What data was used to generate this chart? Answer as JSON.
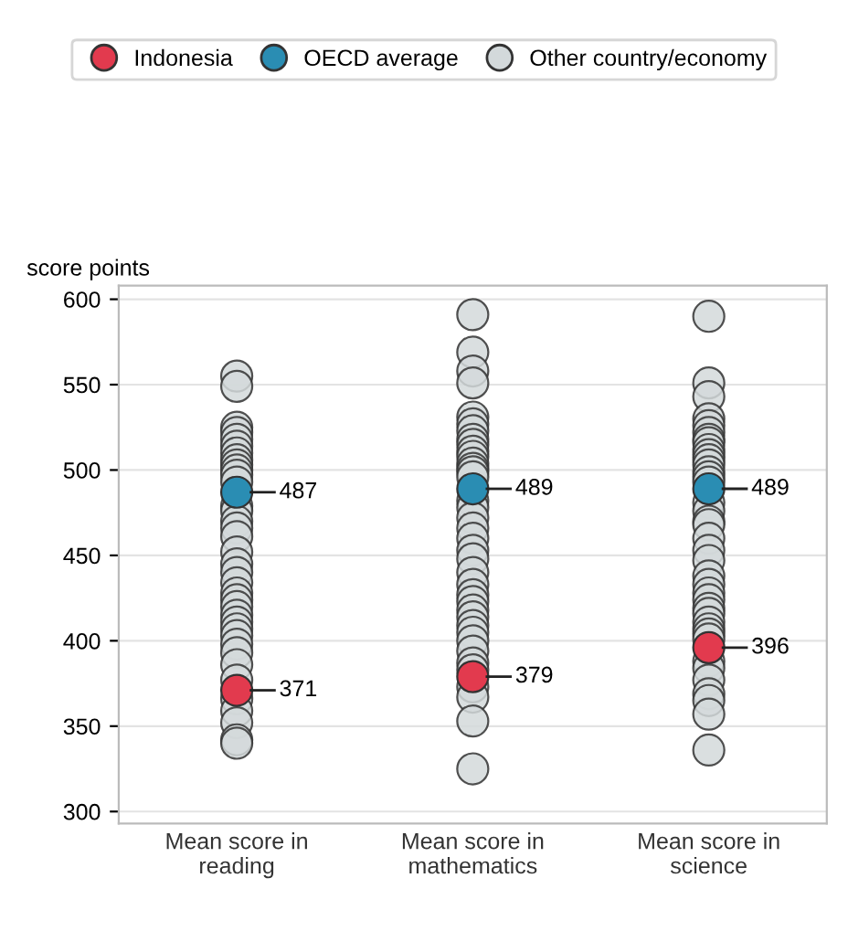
{
  "chart_data": {
    "type": "scatter",
    "ylabel": "score points",
    "categories": [
      "Mean score in\nreading",
      "Mean score in\nmathematics",
      "Mean score in\nscience"
    ],
    "ylim": [
      293,
      608
    ],
    "yticks": [
      300,
      350,
      400,
      450,
      500,
      550,
      600
    ],
    "grid": "y",
    "legend": "top",
    "marker": "circle",
    "series": [
      {
        "name": "Other country/economy",
        "color": "#d3d9db",
        "x": [
          "Mean score in\nreading",
          "Mean score in\nreading",
          "Mean score in\nreading",
          "Mean score in\nreading",
          "Mean score in\nreading",
          "Mean score in\nreading",
          "Mean score in\nreading",
          "Mean score in\nreading",
          "Mean score in\nreading",
          "Mean score in\nreading",
          "Mean score in\nreading",
          "Mean score in\nreading",
          "Mean score in\nreading",
          "Mean score in\nreading",
          "Mean score in\nreading",
          "Mean score in\nreading",
          "Mean score in\nreading",
          "Mean score in\nreading",
          "Mean score in\nreading",
          "Mean score in\nreading",
          "Mean score in\nreading",
          "Mean score in\nreading",
          "Mean score in\nreading",
          "Mean score in\nreading",
          "Mean score in\nreading",
          "Mean score in\nreading",
          "Mean score in\nreading",
          "Mean score in\nreading",
          "Mean score in\nreading",
          "Mean score in\nreading",
          "Mean score in\nreading",
          "Mean score in\nreading",
          "Mean score in\nreading",
          "Mean score in\nreading",
          "Mean score in\nreading",
          "Mean score in\nreading",
          "Mean score in\nreading",
          "Mean score in\nreading",
          "Mean score in\nmathematics",
          "Mean score in\nmathematics",
          "Mean score in\nmathematics",
          "Mean score in\nmathematics",
          "Mean score in\nmathematics",
          "Mean score in\nmathematics",
          "Mean score in\nmathematics",
          "Mean score in\nmathematics",
          "Mean score in\nmathematics",
          "Mean score in\nmathematics",
          "Mean score in\nmathematics",
          "Mean score in\nmathematics",
          "Mean score in\nmathematics",
          "Mean score in\nmathematics",
          "Mean score in\nmathematics",
          "Mean score in\nmathematics",
          "Mean score in\nmathematics",
          "Mean score in\nmathematics",
          "Mean score in\nmathematics",
          "Mean score in\nmathematics",
          "Mean score in\nmathematics",
          "Mean score in\nmathematics",
          "Mean score in\nmathematics",
          "Mean score in\nmathematics",
          "Mean score in\nmathematics",
          "Mean score in\nmathematics",
          "Mean score in\nmathematics",
          "Mean score in\nmathematics",
          "Mean score in\nmathematics",
          "Mean score in\nmathematics",
          "Mean score in\nmathematics",
          "Mean score in\nmathematics",
          "Mean score in\nmathematics",
          "Mean score in\nmathematics",
          "Mean score in\nmathematics",
          "Mean score in\nmathematics",
          "Mean score in\nmathematics",
          "Mean score in\nmathematics",
          "Mean score in\nmathematics",
          "Mean score in\nscience",
          "Mean score in\nscience",
          "Mean score in\nscience",
          "Mean score in\nscience",
          "Mean score in\nscience",
          "Mean score in\nscience",
          "Mean score in\nscience",
          "Mean score in\nscience",
          "Mean score in\nscience",
          "Mean score in\nscience",
          "Mean score in\nscience",
          "Mean score in\nscience",
          "Mean score in\nscience",
          "Mean score in\nscience",
          "Mean score in\nscience",
          "Mean score in\nscience",
          "Mean score in\nscience",
          "Mean score in\nscience",
          "Mean score in\nscience",
          "Mean score in\nscience",
          "Mean score in\nscience",
          "Mean score in\nscience",
          "Mean score in\nscience",
          "Mean score in\nscience",
          "Mean score in\nscience",
          "Mean score in\nscience",
          "Mean score in\nscience",
          "Mean score in\nscience",
          "Mean score in\nscience",
          "Mean score in\nscience",
          "Mean score in\nscience",
          "Mean score in\nscience",
          "Mean score in\nscience",
          "Mean score in\nscience",
          "Mean score in\nscience",
          "Mean score in\nscience",
          "Mean score in\nscience",
          "Mean score in\nscience",
          "Mean score in\nscience"
        ],
        "values": [
          555,
          549,
          525,
          522,
          518,
          514,
          510,
          506,
          503,
          500,
          497,
          493,
          null,
          479,
          476,
          470,
          466,
          461,
          452,
          445,
          440,
          434,
          428,
          424,
          420,
          415,
          411,
          407,
          403,
          398,
          393,
          386,
          377,
          366,
          359,
          352,
          342,
          340,
          591,
          569,
          558,
          551,
          531,
          527,
          523,
          518,
          515,
          511,
          508,
          504,
          501,
          499,
          496,
          null,
          482,
          478,
          472,
          466,
          460,
          453,
          448,
          440,
          433,
          427,
          423,
          418,
          414,
          409,
          405,
          400,
          394,
          387,
          383,
          373,
          367,
          353,
          325,
          590,
          551,
          543,
          530,
          526,
          522,
          518,
          516,
          512,
          509,
          506,
          503,
          499,
          496,
          493,
          481,
          476,
          470,
          468,
          460,
          453,
          447,
          438,
          433,
          428,
          424,
          419,
          416,
          411,
          407,
          404,
          401,
          388,
          384,
          377,
          369,
          365,
          357,
          336
        ]
      },
      {
        "name": "OECD average",
        "color": "#2a8db3",
        "values": [
          487,
          489,
          489
        ],
        "value_labels": [
          "487",
          "489",
          "489"
        ]
      },
      {
        "name": "Indonesia",
        "color": "#e23a4e",
        "values": [
          371,
          379,
          396
        ],
        "value_labels": [
          "371",
          "379",
          "396"
        ]
      }
    ]
  }
}
